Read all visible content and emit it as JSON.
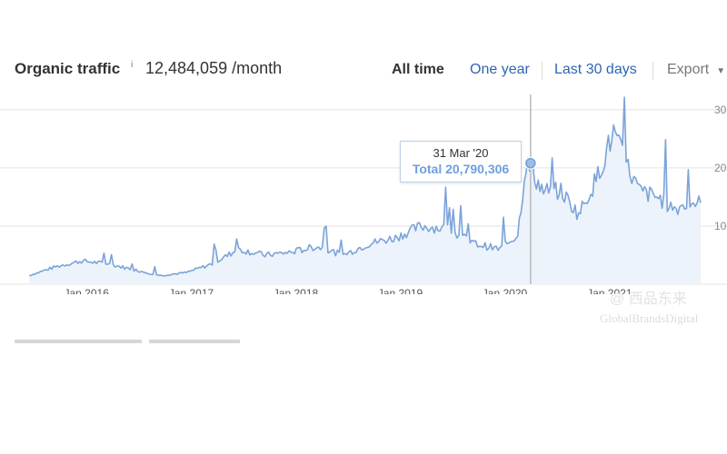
{
  "header": {
    "title": "Organic traffic",
    "info": "i",
    "metric": "12,484,059 /month",
    "tabs": [
      "All time",
      "One year",
      "Last 30 days"
    ],
    "export_label": "Export",
    "export_caret": "▼"
  },
  "tooltip": {
    "date": "31 Mar '20",
    "value": "Total 20,790,306"
  },
  "watermark": {
    "line1": "@ 西品东来",
    "line2": "GlobalBrandsDigital"
  },
  "colors": {
    "line": "#7ba3d9",
    "fill": "#edf3fb",
    "grid": "#e3e3e3",
    "accent": "#2e65b5"
  },
  "chart_data": {
    "type": "area",
    "series": [
      {
        "x": [
          "2015-06",
          "2015-09",
          "2015-12",
          "2016-03",
          "2016-06",
          "2016-09",
          "2016-12",
          "2017-03",
          "2017-06",
          "2017-09",
          "2017-12",
          "2018-03",
          "2018-06",
          "2018-09",
          "2018-12",
          "2019-03",
          "2019-06",
          "2019-09",
          "2019-12",
          "2020-02",
          "2020-03",
          "2020-05",
          "2020-07",
          "2020-09",
          "2020-11",
          "2021-01",
          "2021-02",
          "2021-04",
          "2021-06",
          "2021-08",
          "2021-10",
          "2021-11"
        ],
        "y": [
          1.5,
          3,
          4,
          3.5,
          2.5,
          1.5,
          2,
          3.5,
          6,
          5,
          5.5,
          6.5,
          5,
          7,
          8,
          10,
          9.5,
          7,
          6,
          8.5,
          20.8,
          16,
          16,
          12,
          18,
          26,
          22,
          16,
          15,
          13,
          14,
          14
        ]
      }
    ],
    "x_ticks": [
      "Jan 2016",
      "Jan 2017",
      "Jan 2018",
      "Jan 2019",
      "Jan 2020",
      "Jan 2021"
    ],
    "y_ticks": [
      "10",
      "20",
      "30"
    ],
    "ylim": [
      0,
      32
    ],
    "grid": true,
    "highlight": {
      "x": "2020-03-31",
      "y": 20.8
    }
  }
}
